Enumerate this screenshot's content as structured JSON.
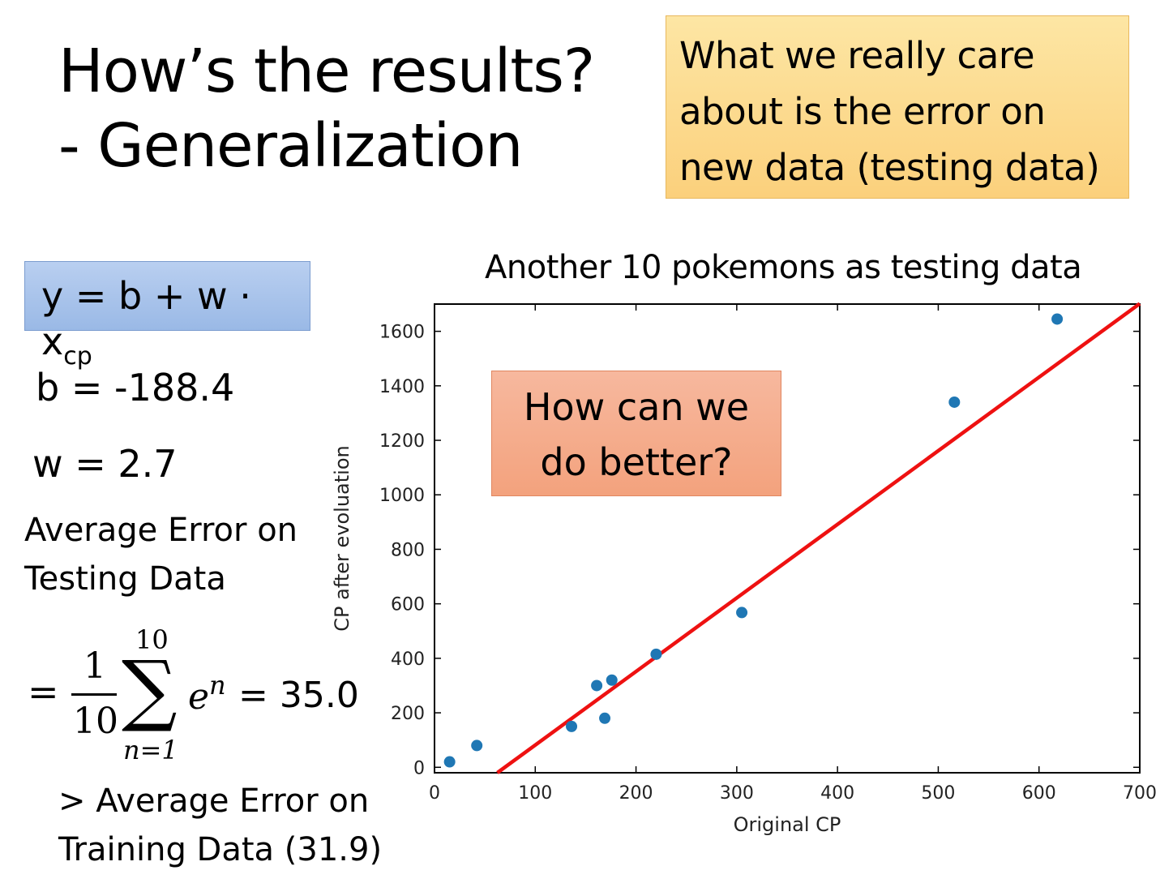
{
  "slide": {
    "title_line1": "How’s the results?",
    "title_line2": "- Generalization",
    "note": [
      "What we really care",
      "about is the error on",
      "new data (testing data)"
    ],
    "formula_main": "y = b + w · x",
    "formula_sub": "cp",
    "b_line": "b = -188.4",
    "w_line": "w = 2.7",
    "avg_error_label": [
      "Average Error on",
      "Testing Data"
    ],
    "sum_eq": "=",
    "sum_num": "1",
    "sum_den": "10",
    "sum_top": "10",
    "sum_symbol": "∑",
    "sum_bottom": "n=1",
    "sum_term": "e",
    "sum_term_sup": "n",
    "sum_result": "= 35.0",
    "compare": [
      "> Average Error on",
      "Training Data (31.9)"
    ],
    "question": [
      "How can we",
      "do better?"
    ]
  },
  "colors": {
    "points": "#1f77b4",
    "fit_line": "#ee1111",
    "note_bg": "#fcd88f",
    "formula_bg": "#a9c4ec",
    "question_bg": "#f5ad8c"
  },
  "chart_data": {
    "type": "scatter",
    "title": "Another 10 pokemons as testing data",
    "xlabel": "Original CP",
    "ylabel": "CP after evoluation",
    "xlim": [
      0,
      700
    ],
    "ylim": [
      -20,
      1700
    ],
    "xticks": [
      0,
      100,
      200,
      300,
      400,
      500,
      600,
      700
    ],
    "yticks": [
      0,
      200,
      400,
      600,
      800,
      1000,
      1200,
      1400,
      1600
    ],
    "points": {
      "x": [
        15,
        42,
        136,
        161,
        169,
        176,
        220,
        305,
        516,
        618
      ],
      "y": [
        20,
        80,
        150,
        300,
        180,
        320,
        415,
        568,
        1340,
        1645
      ]
    },
    "fit_line": {
      "intercept": -188.4,
      "slope": 2.7
    },
    "grid": false
  }
}
